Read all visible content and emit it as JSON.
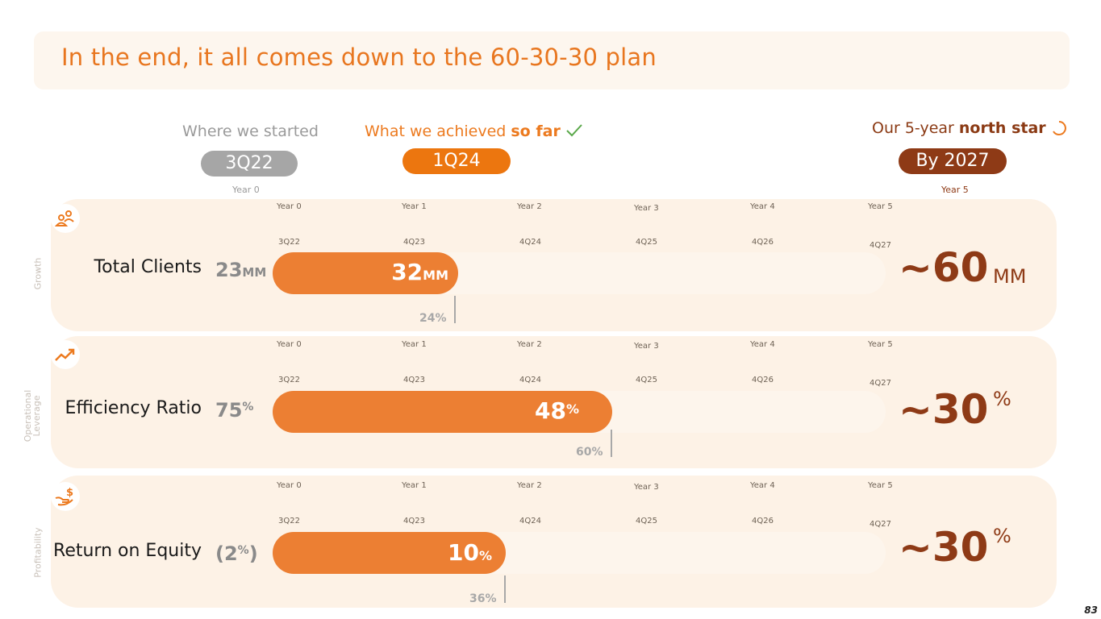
{
  "title": "In the end, it all comes down to the 60-30-30 plan",
  "headers": {
    "start_prefix": "Where we started",
    "start_pill": "3Q22",
    "start_year": "Year 0",
    "achieved_prefix": "What we achieved ",
    "achieved_bold": "so far",
    "achieved_icon": "checkmark-icon",
    "achieved_pill": "1Q24",
    "star_prefix": "Our 5-year ",
    "star_bold": "north star",
    "star_icon": "circle-progress-icon",
    "star_pill": "By 2027",
    "star_year": "Year 5"
  },
  "timeline": {
    "years": [
      "Year 0",
      "Year 1",
      "Year 2",
      "Year 3",
      "Year 4",
      "Year 5"
    ],
    "quarters": [
      "3Q22",
      "4Q23",
      "4Q24",
      "4Q25",
      "4Q26",
      "4Q27"
    ]
  },
  "rows": [
    {
      "side_label": "Growth",
      "icon": "people-icon",
      "metric": "Total Clients",
      "start_value": "23",
      "start_unit": "MM",
      "current_value": "32",
      "current_unit": "MM",
      "marker_value": "24%",
      "goal_value": "~60",
      "goal_unit": "MM"
    },
    {
      "side_label_1": "Operational",
      "side_label_2": "Leverage",
      "icon": "trending-up-icon",
      "metric": "Efficiency Ratio",
      "start_value": "75",
      "start_unit": "%",
      "current_value": "48",
      "current_unit": "%",
      "marker_value": "60%",
      "goal_value": "~30",
      "goal_unit": "%"
    },
    {
      "side_label": "Profitability",
      "icon": "hand-dollar-icon",
      "metric": "Return on Equity",
      "start_value_open": "(2",
      "start_unit": "%",
      "start_value_close": ")",
      "current_value": "10",
      "current_unit": "%",
      "marker_value": "36%",
      "goal_value": "~30",
      "goal_unit": "%"
    }
  ],
  "page_number": "83",
  "colors": {
    "accent": "#ec7f33",
    "dark": "#8e3a16",
    "muted": "#a6a6a6"
  }
}
